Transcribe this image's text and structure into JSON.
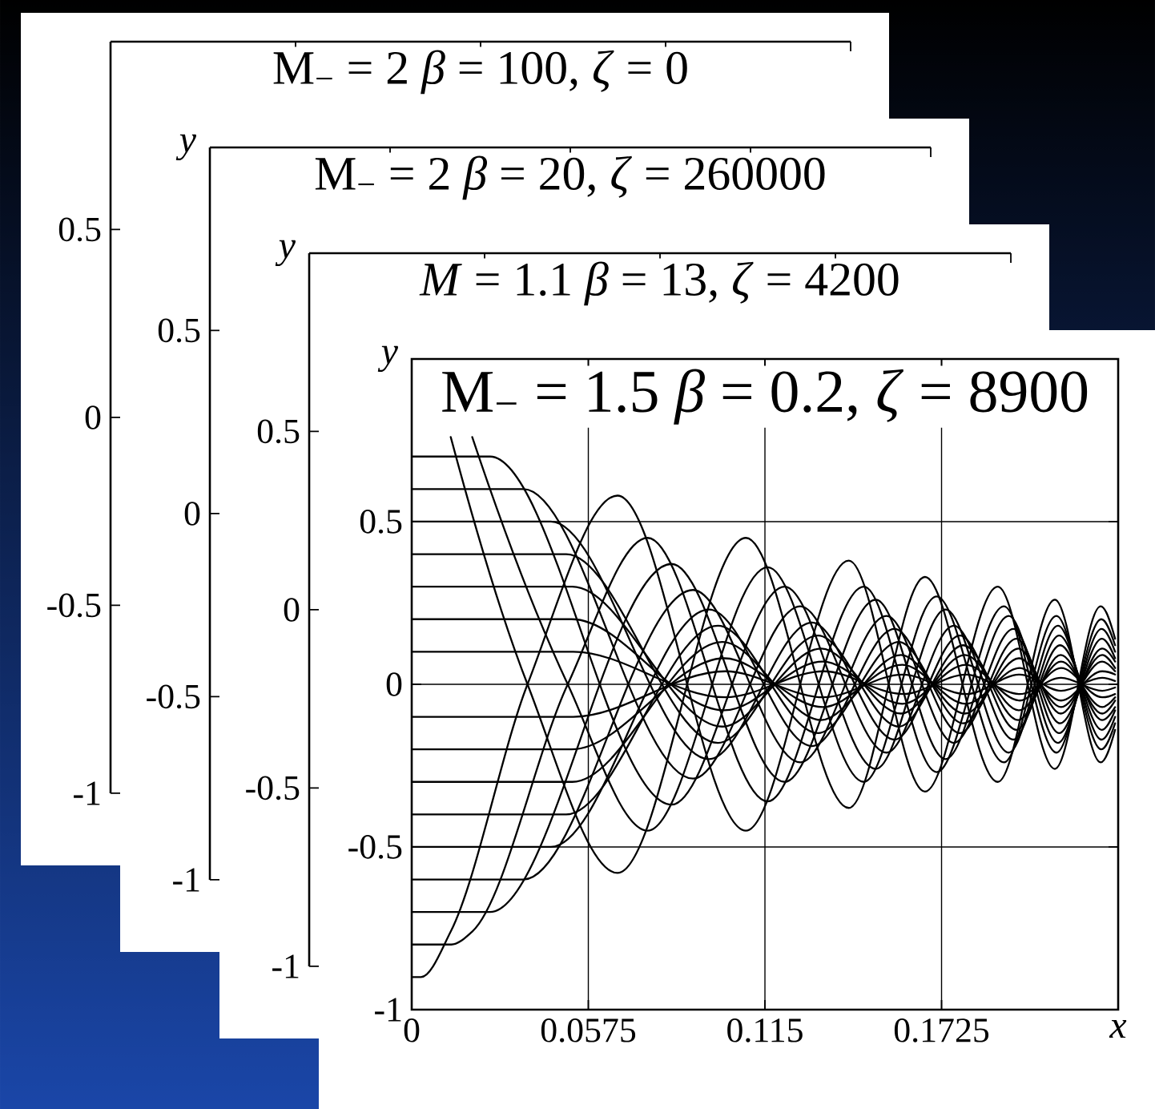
{
  "chart_data": [
    {
      "type": "line",
      "title": "M$_{−}$ = 2  *β* = 100, *ζ* = 0",
      "categories": [
        null,
        null,
        null,
        null,
        null
      ],
      "values": [
        null,
        null,
        null,
        null,
        null
      ],
      "ylim": [
        -1,
        1
      ],
      "yticks": [
        -1,
        -0.5,
        0,
        0.5
      ],
      "tick_labels": "y"
    },
    {
      "type": "line",
      "title": "M$_{−}$ = 2  *β* = 20, *ζ* = 260000",
      "ylabel": "y",
      "categories": [
        null,
        null,
        null,
        null,
        null
      ],
      "values": [
        null,
        null,
        null,
        null,
        null
      ],
      "ylim": [
        -1,
        1
      ],
      "yticks": [
        -1,
        -0.5,
        0,
        0.5
      ],
      "tick_labels": "y"
    },
    {
      "type": "line",
      "title": "*M* = 1.1  *β* = 13, *ζ* = 4200",
      "ylabel": "y",
      "categories": [
        null,
        null,
        null,
        null,
        null
      ],
      "values": [
        null,
        null,
        null,
        null,
        null
      ],
      "ylim": [
        -1,
        1
      ],
      "yticks": [
        -1,
        -0.5,
        0,
        0.5
      ],
      "tick_labels": "y"
    },
    {
      "type": "line",
      "title": "M$_{−}$ = 1.5  *β* = 0.2, *ζ* = 8900",
      "xlabel": "x",
      "ylabel": "y",
      "xlim": [
        0,
        0.23
      ],
      "xticks": [
        0,
        0.0575,
        0.115,
        0.1725
      ],
      "ylim": [
        -1,
        1
      ],
      "yticks": [
        -1,
        -0.5,
        0,
        0.5
      ],
      "grid": true,
      "series": [
        {
          "color": "#000000",
          "x": [
            0.0127,
            0.0377,
            0.067,
            0.1088,
            0.1423,
            0.1671,
            0.1908,
            0.2094,
            0.2243,
            0.229
          ],
          "values": [
            0.76,
            0,
            -0.58,
            0.45,
            -0.38,
            0.33,
            -0.3,
            0.26,
            -0.24,
            -0.14
          ]
        },
        {
          "color": "#000000",
          "x": [
            0.0197,
            0.0508,
            0.0768,
            0.1159,
            0.1472,
            0.1709,
            0.1928,
            0.2099,
            0.2245,
            0.229
          ],
          "values": [
            0.76,
            0,
            -0.45,
            0.36,
            -0.3,
            0.27,
            -0.24,
            0.21,
            -0.2,
            -0.12
          ]
        },
        {
          "color": "#000000",
          "x": [
            0,
            0.0255,
            0.0846,
            0.1214,
            0.1511,
            0.1738,
            0.1944,
            0.2104,
            0.2246,
            0.229
          ],
          "values": [
            0.7,
            0.7,
            -0.37,
            0.3,
            -0.26,
            0.23,
            -0.21,
            0.18,
            -0.17,
            -0.1
          ]
        },
        {
          "color": "#000000",
          "x": [
            0,
            0.0364,
            0.0916,
            0.1265,
            0.1546,
            0.1765,
            0.1959,
            0.2108,
            0.2247,
            0.229
          ],
          "values": [
            0.6,
            0.6,
            -0.29,
            0.24,
            -0.21,
            0.18,
            -0.17,
            0.15,
            -0.14,
            -0.08
          ]
        },
        {
          "color": "#000000",
          "x": [
            0,
            0.0453,
            0.0968,
            0.1303,
            0.1572,
            0.1785,
            0.1969,
            0.2111,
            0.2248,
            0.229
          ],
          "values": [
            0.5,
            0.5,
            -0.23,
            0.19,
            -0.17,
            0.15,
            -0.14,
            0.12,
            -0.11,
            -0.07
          ]
        },
        {
          "color": "#000000",
          "x": [
            0,
            0.0503,
            0.0997,
            0.1323,
            0.1586,
            0.1796,
            0.1975,
            0.2113,
            0.2248,
            0.229
          ],
          "values": [
            0.4,
            0.4,
            -0.18,
            0.15,
            -0.13,
            0.12,
            -0.11,
            0.09,
            -0.09,
            -0.05
          ]
        },
        {
          "color": "#000000",
          "x": [
            0,
            0.0523,
            0.1011,
            0.1333,
            0.1593,
            0.1801,
            0.1978,
            0.2114,
            0.2248,
            0.229
          ],
          "values": [
            0.3,
            0.3,
            -0.13,
            0.11,
            -0.09,
            0.09,
            -0.08,
            0.07,
            -0.07,
            -0.04
          ]
        },
        {
          "color": "#000000",
          "x": [
            0,
            0.0521,
            0.1018,
            0.1338,
            0.1597,
            0.1804,
            0.198,
            0.2114,
            0.2248,
            0.229
          ],
          "values": [
            0.2,
            0.2,
            -0.08,
            0.07,
            -0.06,
            0.06,
            -0.05,
            0.05,
            -0.04,
            -0.03
          ]
        },
        {
          "color": "#000000",
          "x": [
            0,
            0.0526,
            0.1021,
            0.1341,
            0.1599,
            0.1805,
            0.198,
            0.2114,
            0.2248,
            0.229
          ],
          "values": [
            0.1,
            0.1,
            -0.04,
            0.04,
            -0.03,
            0.03,
            -0.03,
            0.02,
            -0.02,
            -0.01
          ]
        },
        {
          "color": "#000000",
          "x": [
            0,
            0.0526,
            0.1021,
            0.1341,
            0.1599,
            0.1805,
            0.198,
            0.2114,
            0.2248,
            0.229
          ],
          "values": [
            -0.1,
            -0.1,
            0.04,
            -0.04,
            0.03,
            -0.03,
            0.03,
            -0.02,
            0.02,
            0.01
          ]
        },
        {
          "color": "#000000",
          "x": [
            0,
            0.0521,
            0.1018,
            0.1338,
            0.1597,
            0.1804,
            0.198,
            0.2114,
            0.2248,
            0.229
          ],
          "values": [
            -0.2,
            -0.2,
            0.08,
            -0.07,
            0.06,
            -0.06,
            0.05,
            -0.05,
            0.04,
            0.03
          ]
        },
        {
          "color": "#000000",
          "x": [
            0,
            0.0523,
            0.1011,
            0.1333,
            0.1593,
            0.1801,
            0.1978,
            0.2114,
            0.2248,
            0.229
          ],
          "values": [
            -0.3,
            -0.3,
            0.13,
            -0.11,
            0.09,
            -0.09,
            0.08,
            -0.07,
            0.07,
            0.04
          ]
        },
        {
          "color": "#000000",
          "x": [
            0,
            0.0503,
            0.0997,
            0.1323,
            0.1586,
            0.1796,
            0.1975,
            0.2113,
            0.2248,
            0.229
          ],
          "values": [
            -0.4,
            -0.4,
            0.18,
            -0.15,
            0.13,
            -0.12,
            0.11,
            -0.09,
            0.09,
            0.05
          ]
        },
        {
          "color": "#000000",
          "x": [
            0,
            0.0453,
            0.0968,
            0.1303,
            0.1572,
            0.1785,
            0.1969,
            0.2111,
            0.2248,
            0.229
          ],
          "values": [
            -0.5,
            -0.5,
            0.23,
            -0.19,
            0.17,
            -0.15,
            0.14,
            -0.12,
            0.11,
            0.07
          ]
        },
        {
          "color": "#000000",
          "x": [
            0,
            0.0364,
            0.0916,
            0.1265,
            0.1546,
            0.1765,
            0.1959,
            0.2108,
            0.2247,
            0.229
          ],
          "values": [
            -0.6,
            -0.6,
            0.29,
            -0.24,
            0.21,
            -0.18,
            0.17,
            -0.15,
            0.14,
            0.08
          ]
        },
        {
          "color": "#000000",
          "x": [
            0,
            0.0255,
            0.0846,
            0.1214,
            0.1511,
            0.1738,
            0.1944,
            0.2104,
            0.2246,
            0.229
          ],
          "values": [
            -0.7,
            -0.7,
            0.37,
            -0.3,
            0.26,
            -0.23,
            0.21,
            -0.18,
            0.17,
            0.1
          ]
        },
        {
          "color": "#000000",
          "x": [
            0,
            0.0129,
            0.0197,
            0.0508,
            0.0768,
            0.1159,
            0.1472,
            0.1709,
            0.1928,
            0.2099,
            0.2245,
            0.229
          ],
          "values": [
            -0.8,
            -0.8,
            -0.76,
            0,
            0.45,
            -0.36,
            0.3,
            -0.27,
            0.24,
            -0.21,
            0.2,
            0.12
          ]
        },
        {
          "color": "#000000",
          "x": [
            0,
            0.003,
            0.0127,
            0.0377,
            0.067,
            0.1088,
            0.1423,
            0.1671,
            0.1908,
            0.2094,
            0.2243,
            0.229
          ],
          "values": [
            -0.9,
            -0.9,
            -0.76,
            0,
            0.58,
            -0.45,
            0.38,
            -0.33,
            0.3,
            -0.26,
            0.24,
            0.14
          ]
        }
      ]
    }
  ]
}
